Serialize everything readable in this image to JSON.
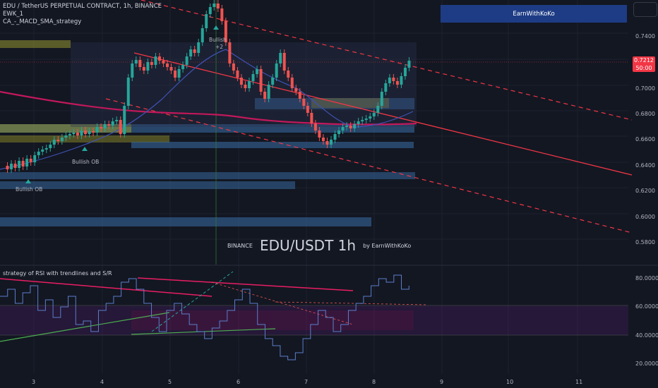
{
  "legend": {
    "symbol": "EDU / TetherUS PERPETUAL CONTRACT, 1h, BINANCE",
    "indicator1": "EWK_1",
    "indicator2": "CA_-_MACD_SMA_strategy"
  },
  "brand": "EarnWithKoKo",
  "price_tag": {
    "price": "0.7212",
    "countdown": "50:00"
  },
  "price_axis": [
    "0.7400",
    "0.7200",
    "0.7000",
    "0.6800",
    "0.6600",
    "0.6400",
    "0.6200",
    "0.6000",
    "0.5800"
  ],
  "rsi_axis": [
    "80.0000",
    "60.0000",
    "40.0000",
    "20.0000"
  ],
  "time_axis": [
    "3",
    "4",
    "5",
    "6",
    "7",
    "8",
    "9",
    "10",
    "11"
  ],
  "watermark": {
    "exchange": "BINANCE",
    "title": "EDU/USDT 1h",
    "by": "by EarnWithKoKo"
  },
  "rsi_title": "strategy of RSI with trendlines and S/R",
  "annotations": {
    "bullish_ob_1": "Bullish OB",
    "bullish_ob_2": "Bullish OB",
    "bullish_top": "Bullish",
    "bullish_top_sub": "+2"
  },
  "colors": {
    "up": "#26a69a",
    "down": "#ef5350",
    "bg": "#131722",
    "accent": "#1e3c85"
  }
}
